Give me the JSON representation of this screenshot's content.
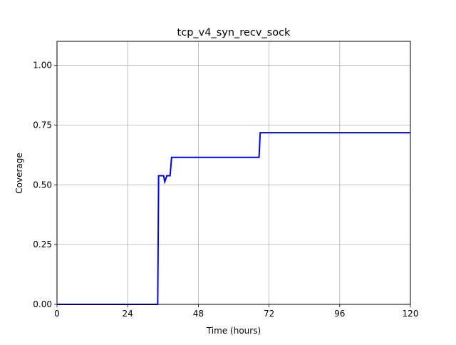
{
  "chart_data": {
    "type": "line",
    "title": "tcp_v4_syn_recv_sock",
    "xlabel": "Time (hours)",
    "ylabel": "Coverage",
    "xlim": [
      0,
      120
    ],
    "ylim": [
      0,
      1.1
    ],
    "x_ticks": [
      0,
      24,
      48,
      72,
      96,
      120
    ],
    "x_tick_labels": [
      "0",
      "24",
      "48",
      "72",
      "96",
      "120"
    ],
    "y_ticks": [
      0,
      0.25,
      0.5,
      0.75,
      1.0
    ],
    "y_tick_labels": [
      "0.00",
      "0.25",
      "0.50",
      "0.75",
      "1.00"
    ],
    "grid": true,
    "series": [
      {
        "color": "#0000ff",
        "points": [
          [
            0,
            0.0
          ],
          [
            34.2,
            0.0
          ],
          [
            34.5,
            0.538
          ],
          [
            36.2,
            0.538
          ],
          [
            36.6,
            0.513
          ],
          [
            37.3,
            0.538
          ],
          [
            38.4,
            0.538
          ],
          [
            38.9,
            0.615
          ],
          [
            68.6,
            0.615
          ],
          [
            69.0,
            0.718
          ],
          [
            120,
            0.718
          ]
        ]
      }
    ]
  }
}
